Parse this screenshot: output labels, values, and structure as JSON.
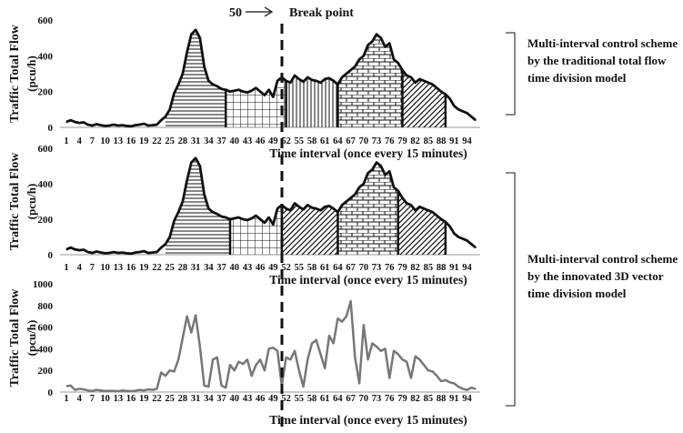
{
  "break_marker": {
    "value_label": "50",
    "label": "Break point"
  },
  "annotations": {
    "top": "Multi-interval control scheme by the traditional total flow time division model",
    "bottom": "Multi-interval control scheme by the innovated 3D vector time division model"
  },
  "colors": {
    "line": "#111111",
    "line_grey": "#777777",
    "axis": "#999999",
    "text": "#111111"
  },
  "chart_data": [
    {
      "type": "area",
      "title": "",
      "ylabel": "Traffic Total Flow\n(pcu/h)",
      "xlabel": "Time interval  (once every 15 minutes)",
      "ylim": [
        0,
        600
      ],
      "yticks": [
        0,
        200,
        400,
        600
      ],
      "xticklabels": [
        "1",
        "4",
        "7",
        "10",
        "13",
        "16",
        "19",
        "22",
        "25",
        "28",
        "31",
        "34",
        "37",
        "40",
        "43",
        "46",
        "49",
        "52",
        "55",
        "58",
        "61",
        "64",
        "67",
        "70",
        "73",
        "76",
        "79",
        "82",
        "85",
        "88",
        "91",
        "94"
      ],
      "x": [
        1,
        2,
        3,
        4,
        5,
        6,
        7,
        8,
        9,
        10,
        11,
        12,
        13,
        14,
        15,
        16,
        17,
        18,
        19,
        20,
        21,
        22,
        23,
        24,
        25,
        26,
        27,
        28,
        29,
        30,
        31,
        32,
        33,
        34,
        35,
        36,
        37,
        38,
        39,
        40,
        41,
        42,
        43,
        44,
        45,
        46,
        47,
        48,
        49,
        50,
        51,
        52,
        53,
        54,
        55,
        56,
        57,
        58,
        59,
        60,
        61,
        62,
        63,
        64,
        65,
        66,
        67,
        68,
        69,
        70,
        71,
        72,
        73,
        74,
        75,
        76,
        77,
        78,
        79,
        80,
        81,
        82,
        83,
        84,
        85,
        86,
        87,
        88,
        89,
        90,
        91,
        92,
        93,
        94,
        95,
        96
      ],
      "values": [
        30,
        40,
        30,
        25,
        28,
        15,
        10,
        18,
        12,
        8,
        10,
        15,
        10,
        12,
        8,
        6,
        12,
        15,
        20,
        10,
        12,
        15,
        40,
        60,
        100,
        190,
        240,
        300,
        420,
        520,
        545,
        500,
        340,
        260,
        240,
        230,
        215,
        210,
        200,
        205,
        210,
        200,
        195,
        205,
        220,
        200,
        180,
        210,
        170,
        260,
        280,
        260,
        250,
        290,
        270,
        255,
        280,
        265,
        260,
        250,
        270,
        275,
        260,
        240,
        280,
        300,
        320,
        340,
        380,
        400,
        460,
        480,
        520,
        500,
        450,
        470,
        380,
        360,
        320,
        290,
        280,
        250,
        270,
        260,
        250,
        240,
        220,
        200,
        185,
        160,
        120,
        100,
        90,
        80,
        60,
        40
      ],
      "segments": [
        {
          "start": 24,
          "end": 38,
          "pattern": "horizontal"
        },
        {
          "start": 38,
          "end": 52,
          "pattern": "grid"
        },
        {
          "start": 52,
          "end": 64,
          "pattern": "vertical"
        },
        {
          "start": 64,
          "end": 79,
          "pattern": "brick"
        },
        {
          "start": 79,
          "end": 89,
          "pattern": "diagonal"
        }
      ]
    },
    {
      "type": "area",
      "title": "",
      "ylabel": "Traffic Total Flow\n(pcu/h)",
      "xlabel": "Time interval  (once every 15 minutes)",
      "ylim": [
        0,
        600
      ],
      "yticks": [
        0,
        200,
        400,
        600
      ],
      "xticklabels": [
        "1",
        "4",
        "7",
        "10",
        "13",
        "16",
        "19",
        "22",
        "25",
        "28",
        "31",
        "34",
        "37",
        "40",
        "43",
        "46",
        "49",
        "52",
        "55",
        "58",
        "61",
        "64",
        "67",
        "70",
        "73",
        "76",
        "79",
        "82",
        "85",
        "88",
        "91",
        "94"
      ],
      "x": [
        1,
        2,
        3,
        4,
        5,
        6,
        7,
        8,
        9,
        10,
        11,
        12,
        13,
        14,
        15,
        16,
        17,
        18,
        19,
        20,
        21,
        22,
        23,
        24,
        25,
        26,
        27,
        28,
        29,
        30,
        31,
        32,
        33,
        34,
        35,
        36,
        37,
        38,
        39,
        40,
        41,
        42,
        43,
        44,
        45,
        46,
        47,
        48,
        49,
        50,
        51,
        52,
        53,
        54,
        55,
        56,
        57,
        58,
        59,
        60,
        61,
        62,
        63,
        64,
        65,
        66,
        67,
        68,
        69,
        70,
        71,
        72,
        73,
        74,
        75,
        76,
        77,
        78,
        79,
        80,
        81,
        82,
        83,
        84,
        85,
        86,
        87,
        88,
        89,
        90,
        91,
        92,
        93,
        94,
        95,
        96
      ],
      "values": [
        30,
        40,
        30,
        25,
        28,
        15,
        10,
        18,
        12,
        8,
        10,
        15,
        10,
        12,
        8,
        6,
        12,
        15,
        20,
        10,
        12,
        15,
        40,
        60,
        100,
        190,
        240,
        300,
        420,
        520,
        545,
        500,
        340,
        260,
        240,
        230,
        215,
        210,
        200,
        205,
        210,
        200,
        195,
        205,
        220,
        200,
        180,
        210,
        170,
        260,
        280,
        260,
        250,
        290,
        270,
        255,
        280,
        265,
        260,
        250,
        270,
        275,
        260,
        240,
        280,
        300,
        320,
        340,
        380,
        400,
        460,
        480,
        520,
        500,
        450,
        470,
        380,
        360,
        320,
        290,
        280,
        250,
        270,
        260,
        250,
        240,
        220,
        200,
        185,
        160,
        120,
        100,
        90,
        80,
        60,
        40
      ],
      "segments": [
        {
          "start": 24,
          "end": 39,
          "pattern": "horizontal"
        },
        {
          "start": 39,
          "end": 51,
          "pattern": "grid"
        },
        {
          "start": 51,
          "end": 64,
          "pattern": "diagonal"
        },
        {
          "start": 64,
          "end": 78,
          "pattern": "brick"
        },
        {
          "start": 78,
          "end": 89,
          "pattern": "diagonal"
        }
      ]
    },
    {
      "type": "line",
      "title": "",
      "ylabel": "Traffic Total Flow\n(pcu/h)",
      "xlabel": "Time interval  (once every 15 minutes)",
      "ylim": [
        0,
        1000
      ],
      "yticks": [
        0,
        200,
        400,
        600,
        800,
        1000
      ],
      "xticklabels": [
        "1",
        "4",
        "7",
        "10",
        "13",
        "16",
        "19",
        "22",
        "25",
        "28",
        "31",
        "34",
        "37",
        "40",
        "43",
        "46",
        "49",
        "52",
        "55",
        "58",
        "61",
        "64",
        "67",
        "70",
        "73",
        "76",
        "79",
        "82",
        "85",
        "88",
        "91",
        "94"
      ],
      "x": [
        1,
        2,
        3,
        4,
        5,
        6,
        7,
        8,
        9,
        10,
        11,
        12,
        13,
        14,
        15,
        16,
        17,
        18,
        19,
        20,
        21,
        22,
        23,
        24,
        25,
        26,
        27,
        28,
        29,
        30,
        31,
        32,
        33,
        34,
        35,
        36,
        37,
        38,
        39,
        40,
        41,
        42,
        43,
        44,
        45,
        46,
        47,
        48,
        49,
        50,
        51,
        52,
        53,
        54,
        55,
        56,
        57,
        58,
        59,
        60,
        61,
        62,
        63,
        64,
        65,
        66,
        67,
        68,
        69,
        70,
        71,
        72,
        73,
        74,
        75,
        76,
        77,
        78,
        79,
        80,
        81,
        82,
        83,
        84,
        85,
        86,
        87,
        88,
        89,
        90,
        91,
        92,
        93,
        94,
        95,
        96
      ],
      "values": [
        55,
        60,
        20,
        30,
        25,
        15,
        10,
        20,
        15,
        10,
        12,
        10,
        8,
        15,
        10,
        8,
        12,
        20,
        15,
        25,
        20,
        30,
        180,
        150,
        200,
        190,
        300,
        500,
        700,
        550,
        710,
        420,
        60,
        50,
        300,
        320,
        60,
        40,
        250,
        200,
        280,
        260,
        300,
        150,
        250,
        300,
        200,
        400,
        410,
        380,
        60,
        320,
        300,
        380,
        200,
        50,
        300,
        450,
        480,
        350,
        220,
        520,
        450,
        680,
        650,
        700,
        840,
        320,
        80,
        620,
        300,
        450,
        420,
        380,
        400,
        130,
        380,
        350,
        300,
        280,
        130,
        330,
        300,
        250,
        200,
        190,
        150,
        100,
        110,
        90,
        80,
        50,
        30,
        20,
        40,
        30
      ]
    }
  ]
}
